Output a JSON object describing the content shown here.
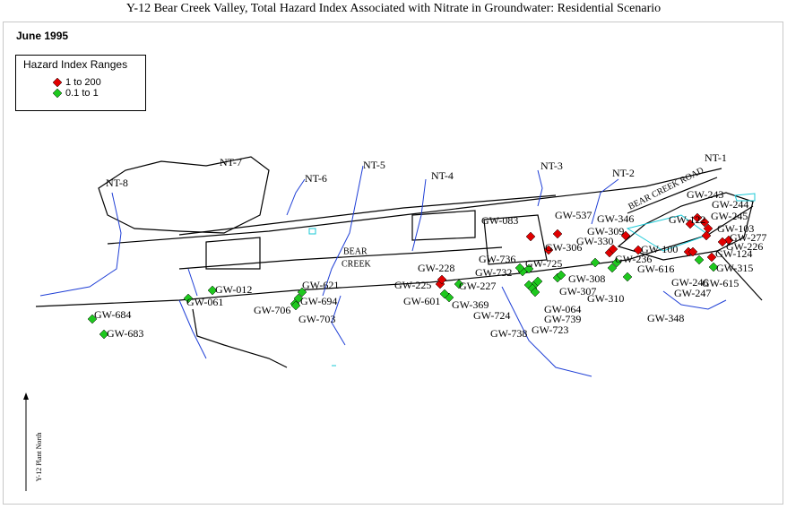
{
  "title": "Y-12 Bear Creek Valley, Total Hazard Index Associated with Nitrate in Groundwater: Residential Scenario",
  "date": "June 1995",
  "legend": {
    "title": "Hazard Index Ranges",
    "ranges": [
      {
        "label": "1    to 200",
        "color": "#e00000",
        "wells": [
          "GW-083",
          "GW-537",
          "GW-306",
          "GW-225",
          "GW-228",
          "GW-330",
          "GW-309",
          "GW-346",
          "GW-100",
          "GW-246",
          "GW-247",
          "GW-124",
          "GW-103",
          "GW-277",
          "GW-226",
          "GW-245",
          "GW-244",
          "GW-243",
          "GW-122"
        ]
      },
      {
        "label": "0.1 to    1",
        "color": "#1ec81e",
        "wells": [
          "GW-684",
          "GW-683",
          "GW-061",
          "GW-012",
          "GW-706",
          "GW-703",
          "GW-694",
          "GW-621",
          "GW-227",
          "GW-369",
          "GW-601",
          "GW-732",
          "GW-736",
          "GW-725",
          "GW-724",
          "GW-738",
          "GW-739",
          "GW-723",
          "GW-064",
          "GW-308",
          "GW-307",
          "GW-310",
          "GW-348",
          "GW-616",
          "GW-236",
          "GW-315",
          "GW-615"
        ]
      }
    ]
  },
  "streams": [
    "NT-1",
    "NT-2",
    "NT-3",
    "NT-4",
    "NT-5",
    "NT-6",
    "NT-7",
    "NT-8"
  ],
  "features": [
    "BEAR",
    "CREEK",
    "BEAR CREEK ROAD"
  ],
  "north_label": "Y-12 Plant North"
}
